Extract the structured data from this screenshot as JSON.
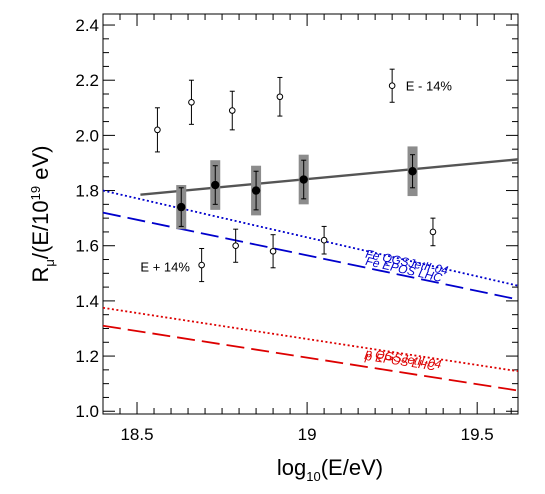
{
  "chart_data": {
    "type": "scatter",
    "xlabel": {
      "base": "log",
      "sub": "10",
      "rest": "(E/eV)"
    },
    "ylabel": {
      "pre": "R",
      "sub": "μ",
      "mid": "/(E/10",
      "sup": "19",
      "post": " eV)"
    },
    "xlim": [
      18.4,
      19.62
    ],
    "ylim": [
      0.99,
      2.44
    ],
    "xticks": [
      "18.5",
      "19",
      "19.5"
    ],
    "yticks": [
      "1.0",
      "1.2",
      "1.4",
      "1.6",
      "1.8",
      "2.0",
      "2.2",
      "2.4"
    ],
    "grid": false,
    "series": [
      {
        "id": "nominal",
        "marker": "filled-circle",
        "color": "#000000",
        "x": [
          18.63,
          18.73,
          18.85,
          18.99,
          19.31
        ],
        "y": [
          1.74,
          1.82,
          1.8,
          1.84,
          1.87
        ],
        "stat_err": [
          0.07,
          0.07,
          0.07,
          0.07,
          0.06
        ],
        "sys_err": [
          0.08,
          0.09,
          0.09,
          0.09,
          0.09
        ]
      },
      {
        "id": "E-14%",
        "marker": "open-circle",
        "color": "#000000",
        "x": [
          18.56,
          18.66,
          18.78,
          18.92,
          19.25
        ],
        "y": [
          2.02,
          2.12,
          2.09,
          2.14,
          2.18
        ],
        "stat_err": [
          0.08,
          0.08,
          0.07,
          0.07,
          0.06
        ]
      },
      {
        "id": "E+14%",
        "marker": "open-circle",
        "color": "#000000",
        "x": [
          18.69,
          18.79,
          18.9,
          19.05,
          19.37
        ],
        "y": [
          1.53,
          1.6,
          1.58,
          1.62,
          1.65
        ],
        "stat_err": [
          0.06,
          0.06,
          0.06,
          0.05,
          0.05
        ]
      }
    ],
    "fit_line": {
      "x": [
        18.51,
        19.62
      ],
      "y": [
        1.785,
        1.913
      ],
      "color": "#555555"
    },
    "model_lines": [
      {
        "label": "Fe EPOS LHC",
        "color": "#0000cc",
        "style": "dotted",
        "x": [
          18.4,
          19.62
        ],
        "y": [
          1.8,
          1.455
        ]
      },
      {
        "label": "Fe QGSJetII-04",
        "color": "#0000cc",
        "style": "dashed",
        "x": [
          18.4,
          19.62
        ],
        "y": [
          1.72,
          1.405
        ]
      },
      {
        "label": "p EPOS LHC",
        "color": "#dd0000",
        "style": "dotted",
        "x": [
          18.4,
          19.62
        ],
        "y": [
          1.375,
          1.145
        ]
      },
      {
        "label": "p QGSJetII-04",
        "color": "#dd0000",
        "style": "dashed",
        "x": [
          18.4,
          19.62
        ],
        "y": [
          1.31,
          1.075
        ]
      }
    ],
    "annotations": [
      {
        "text": "E - 14%",
        "x": 19.29,
        "y": 2.18
      },
      {
        "text": "E + 14%",
        "x": 18.51,
        "y": 1.525
      }
    ]
  }
}
